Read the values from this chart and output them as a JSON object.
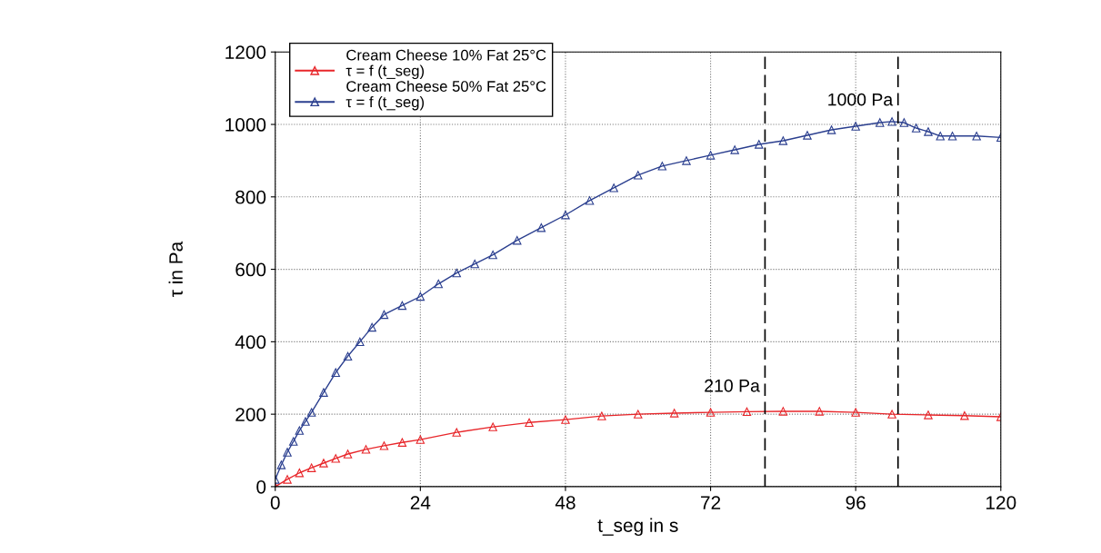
{
  "chart_data": {
    "type": "line",
    "xlabel": "t_seg in s",
    "ylabel": "τ in Pa",
    "xlim": [
      0,
      120
    ],
    "xticks": [
      0,
      24,
      48,
      72,
      96,
      120
    ],
    "ylim": [
      0,
      1200
    ],
    "yticks": [
      0,
      200,
      400,
      600,
      800,
      1000,
      1200
    ],
    "grid": true,
    "legend": "top left",
    "marker": "triangle",
    "line_style": "solid",
    "series": [
      {
        "name": "τ = f (t_seg)",
        "color": "#e8262a",
        "x": [
          0,
          2,
          4,
          6,
          8,
          10,
          12,
          15,
          18,
          21,
          24,
          30,
          36,
          42,
          48,
          54,
          60,
          66,
          72,
          78,
          84,
          90,
          96,
          102,
          108,
          114,
          120
        ],
        "values": [
          0,
          20,
          38,
          52,
          65,
          78,
          90,
          103,
          113,
          122,
          130,
          150,
          165,
          177,
          185,
          195,
          200,
          203,
          205,
          207,
          208,
          208,
          205,
          200,
          198,
          196,
          193
        ]
      },
      {
        "name": "τ = f (t_seg)",
        "color": "#2b3f8f",
        "x": [
          0,
          1,
          2,
          3,
          4,
          5,
          6,
          8,
          10,
          12,
          14,
          16,
          18,
          21,
          24,
          27,
          30,
          33,
          36,
          40,
          44,
          48,
          52,
          56,
          60,
          64,
          68,
          72,
          76,
          80,
          84,
          88,
          92,
          96,
          100,
          102,
          104,
          106,
          108,
          110,
          112,
          116,
          120
        ],
        "values": [
          20,
          60,
          95,
          125,
          155,
          180,
          205,
          260,
          315,
          360,
          400,
          440,
          475,
          500,
          525,
          560,
          590,
          615,
          640,
          680,
          715,
          750,
          790,
          825,
          860,
          885,
          900,
          915,
          930,
          945,
          955,
          970,
          985,
          995,
          1005,
          1008,
          1005,
          990,
          980,
          968,
          968,
          968,
          964
        ]
      }
    ],
    "ref_lines": [
      {
        "axis": "x",
        "value": 81,
        "color": "#000000",
        "line_style": "dashed"
      },
      {
        "axis": "x",
        "value": 103,
        "color": "#000000",
        "line_style": "dashed"
      }
    ],
    "annotations": [
      "Cream Cheese 10% Fat 25°C",
      "Cream Cheese 50% Fat 25°C",
      {
        "text": "210 Pa",
        "x": 81,
        "y": 210
      },
      {
        "text": "1000 Pa",
        "x": 103,
        "y": 1000
      }
    ]
  }
}
